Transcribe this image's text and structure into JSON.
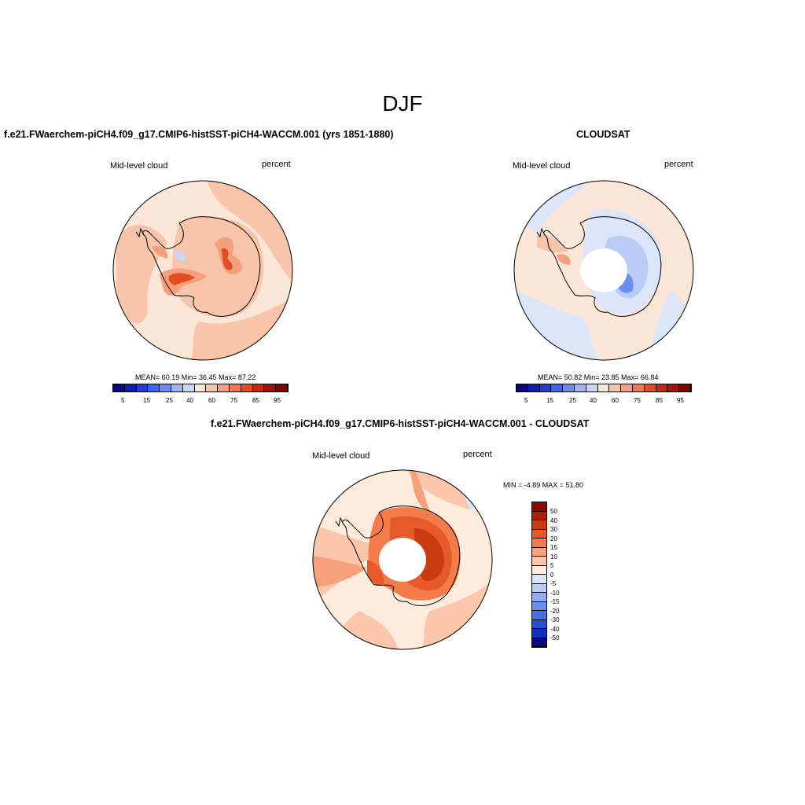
{
  "page": {
    "title": "DJF"
  },
  "panels": [
    {
      "id": "model",
      "title": "f.e21.FWaerchem-piCH4.f09_g17.CMIP6-histSST-piCH4-WACCM.001 (yrs 1851-1880)",
      "left_label": "Mid-level cloud",
      "right_label": "percent",
      "stats": "MEAN=  60.19  Min=  36.45  Max=  87.22",
      "colorbar": {
        "colors": [
          "#0a0a80",
          "#0f1fb0",
          "#1f3fd6",
          "#3366ee",
          "#6a8ef0",
          "#9db4f2",
          "#c8d6f8",
          "#fbe6d8",
          "#f8c4aa",
          "#f4a07c",
          "#f2774c",
          "#e44d22",
          "#c8290e",
          "#a11406",
          "#7a0a00"
        ],
        "labels": [
          "5",
          "15",
          "25",
          "40",
          "60",
          "75",
          "85",
          "95"
        ]
      }
    },
    {
      "id": "obs",
      "title": "CLOUDSAT",
      "left_label": "Mid-level cloud",
      "right_label": "percent",
      "stats": "MEAN=  50.82  Min=  23.85  Max=  66.84",
      "colorbar": {
        "colors": [
          "#0a0a80",
          "#0f1fb0",
          "#1f3fd6",
          "#3366ee",
          "#6a8ef0",
          "#9db4f2",
          "#c8d6f8",
          "#fbe6d8",
          "#f8c4aa",
          "#f4a07c",
          "#f2774c",
          "#e44d22",
          "#c8290e",
          "#a11406",
          "#7a0a00"
        ],
        "labels": [
          "5",
          "15",
          "25",
          "40",
          "60",
          "75",
          "85",
          "95"
        ]
      }
    },
    {
      "id": "diff",
      "title": "f.e21.FWaerchem-piCH4.f09_g17.CMIP6-histSST-piCH4-WACCM.001 - CLOUDSAT",
      "left_label": "Mid-level cloud",
      "right_label": "percent",
      "stats": "MIN =  -4.89 MAX =  51.80",
      "colorbar": {
        "colors": [
          "#8a0a00",
          "#b01e08",
          "#cc3a12",
          "#e65a2a",
          "#f47c4a",
          "#f7a17c",
          "#fbc6aa",
          "#fdebdc",
          "#dbe6fa",
          "#b9ccf6",
          "#92aef2",
          "#6b8ff0",
          "#4470e8",
          "#2550d8",
          "#1030b8",
          "#0a0a80"
        ],
        "labels": [
          "50",
          "40",
          "30",
          "20",
          "15",
          "10",
          "5",
          "0",
          "-5",
          "-10",
          "-15",
          "-20",
          "-30",
          "-40",
          "-50"
        ]
      }
    }
  ],
  "colors": {
    "land_outline": "#000000",
    "missing": "#ffffff"
  }
}
